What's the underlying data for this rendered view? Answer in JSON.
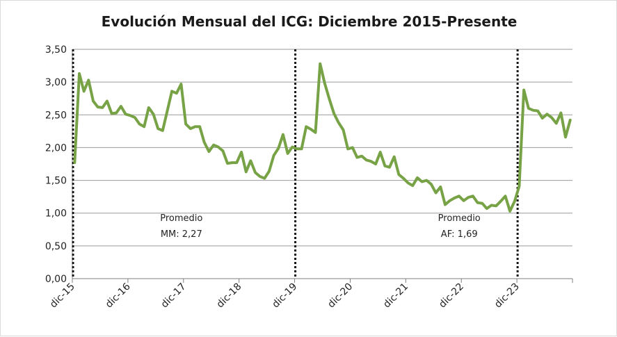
{
  "chart_data": {
    "type": "line",
    "title": "Evolución Mensual del ICG: Diciembre 2015-Presente",
    "xlabel": "",
    "ylabel": "",
    "ylim": [
      0,
      3.5
    ],
    "yticks": [
      "0,00",
      "0,50",
      "1,00",
      "1,50",
      "2,00",
      "2,50",
      "3,00",
      "3,50"
    ],
    "xticks": [
      "dic-15",
      "dic-16",
      "dic-17",
      "dic-18",
      "dic-19",
      "dic-20",
      "dic-21",
      "dic-22",
      "dic-23"
    ],
    "grid": true,
    "line_color": "#77a346",
    "divider_months": [
      0,
      48,
      96
    ],
    "annotations": [
      {
        "line1": "Promedio",
        "line2": "MM: 2,27",
        "month": 24
      },
      {
        "line1": "Promedio",
        "line2": "AF: 1,69",
        "month": 84
      }
    ],
    "series": [
      {
        "name": "ICG",
        "values": [
          1.77,
          3.13,
          2.86,
          3.03,
          2.71,
          2.62,
          2.61,
          2.71,
          2.52,
          2.53,
          2.63,
          2.51,
          2.49,
          2.46,
          2.36,
          2.32,
          2.61,
          2.51,
          2.29,
          2.26,
          2.56,
          2.86,
          2.83,
          2.97,
          2.36,
          2.29,
          2.32,
          2.32,
          2.08,
          1.94,
          2.04,
          2.01,
          1.95,
          1.76,
          1.77,
          1.77,
          1.93,
          1.63,
          1.8,
          1.62,
          1.56,
          1.53,
          1.64,
          1.88,
          1.99,
          2.2,
          1.91,
          2.01,
          1.98,
          1.98,
          2.32,
          2.28,
          2.23,
          3.28,
          2.98,
          2.74,
          2.52,
          2.38,
          2.27,
          1.98,
          2.0,
          1.85,
          1.87,
          1.81,
          1.79,
          1.75,
          1.93,
          1.72,
          1.7,
          1.86,
          1.59,
          1.53,
          1.46,
          1.42,
          1.54,
          1.48,
          1.5,
          1.44,
          1.31,
          1.4,
          1.13,
          1.19,
          1.23,
          1.26,
          1.19,
          1.24,
          1.26,
          1.16,
          1.15,
          1.07,
          1.12,
          1.11,
          1.18,
          1.26,
          1.03,
          1.18,
          1.41,
          2.88,
          2.6,
          2.57,
          2.56,
          2.45,
          2.51,
          2.46,
          2.37,
          2.53,
          2.16,
          2.42
        ]
      }
    ]
  }
}
